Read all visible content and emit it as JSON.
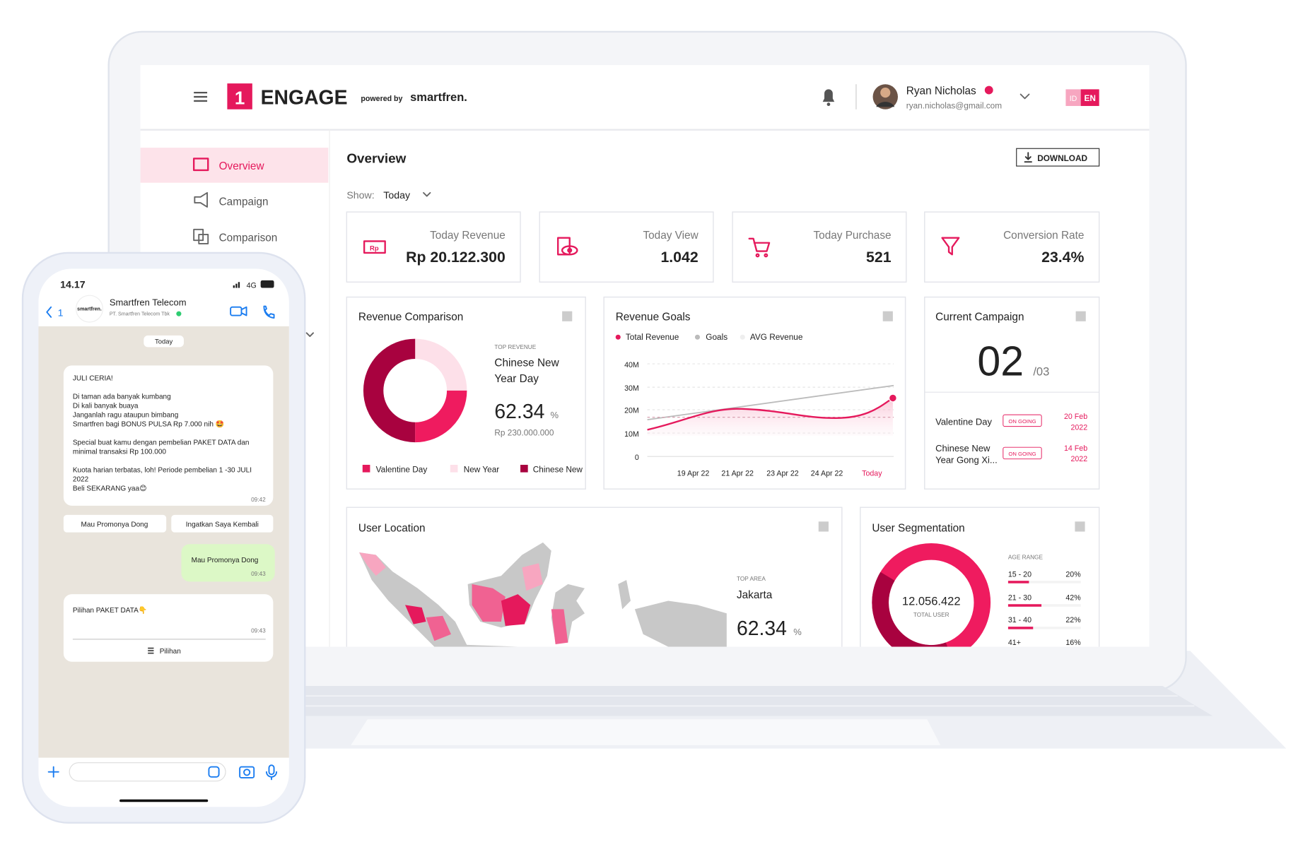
{
  "header": {
    "brand_number": "1",
    "brand": "ENGAGE",
    "powered_by": "powered by",
    "partner": "smartfren.",
    "user_name": "Ryan Nicholas",
    "user_email": "ryan.nicholas@gmail.com",
    "lang": [
      "ID",
      "EN"
    ]
  },
  "sidebar": {
    "items": [
      "Overview",
      "Campaign",
      "Comparison"
    ]
  },
  "page": {
    "title": "Overview",
    "download": "DOWNLOAD",
    "show_label": "Show:",
    "show_value": "Today"
  },
  "kpis": [
    {
      "label": "Today Revenue",
      "value": "Rp 20.122.300"
    },
    {
      "label": "Today View",
      "value": "1.042"
    },
    {
      "label": "Today Purchase",
      "value": "521"
    },
    {
      "label": "Conversion Rate",
      "value": "23.4%"
    }
  ],
  "revenue_comparison": {
    "title": "Revenue Comparison",
    "top_label": "TOP REVENUE",
    "top_name": [
      "Chinese New",
      "Year Day"
    ],
    "percent": "62.34",
    "unit": "%",
    "amount": "Rp 230.000.000",
    "legend": [
      "Valentine Day",
      "New Year",
      "Chinese New"
    ]
  },
  "revenue_goals": {
    "title": "Revenue Goals",
    "legend": [
      "Total Revenue",
      "Goals",
      "AVG Revenue"
    ],
    "yticks": [
      "40M",
      "30M",
      "20M",
      "10M",
      "0"
    ],
    "xticks": [
      "19 Apr 22",
      "21 Apr 22",
      "23 Apr 22",
      "24 Apr 22",
      "Today"
    ]
  },
  "current_campaign": {
    "title": "Current Campaign",
    "current": "02",
    "total": "/03",
    "campaigns": [
      {
        "name": [
          "Valentine Day"
        ],
        "status": "ON GOING",
        "date": [
          "20 Feb",
          "2022"
        ]
      },
      {
        "name": [
          "Chinese New",
          "Year Gong Xi..."
        ],
        "status": "ON GOING",
        "date": [
          "14 Feb",
          "2022"
        ]
      }
    ]
  },
  "user_location": {
    "title": "User Location",
    "top_label": "TOP AREA",
    "top_name": "Jakarta",
    "percent": "62.34",
    "unit": "%"
  },
  "user_segmentation": {
    "title": "User Segmentation",
    "total": "12.056.422",
    "total_label": "TOTAL USER",
    "range_label": "AGE RANGE",
    "ranges": [
      {
        "label": "15 - 20",
        "value": "20%"
      },
      {
        "label": "21 - 30",
        "value": "42%"
      },
      {
        "label": "31 - 40",
        "value": "22%"
      },
      {
        "label": "41+",
        "value": "16%"
      }
    ]
  },
  "phone": {
    "time": "14.17",
    "network": "4G",
    "back": "1",
    "contact": "Smartfren Telecom",
    "contact_sub": "PT. Smartfren Telecom Tbk",
    "avatar": "smartfren.",
    "date": "Today",
    "message": {
      "lines": [
        "JULI CERIA!",
        "Di taman ada banyak kumbang",
        "Di kali banyak buaya",
        "Janganlah ragu ataupun bimbang",
        "Smartfren bagi BONUS PULSA Rp 7.000 nih 🤩",
        "Special buat kamu dengan pembelian PAKET DATA dan",
        "minimal transaksi Rp 100.000",
        "Kuota harian terbatas, loh! Periode pembelian 1 -30 JULI",
        "2022",
        "Beli SEKARANG yaa😊"
      ],
      "time": "09:42"
    },
    "buttons": [
      "Mau Promonya Dong",
      "Ingatkan Saya Kembali"
    ],
    "reply": {
      "text": "Mau Promonya Dong",
      "time": "09:43"
    },
    "message2": {
      "text": "Pilihan PAKET DATA👇",
      "time": "09:43",
      "action": "Pilihan"
    }
  }
}
